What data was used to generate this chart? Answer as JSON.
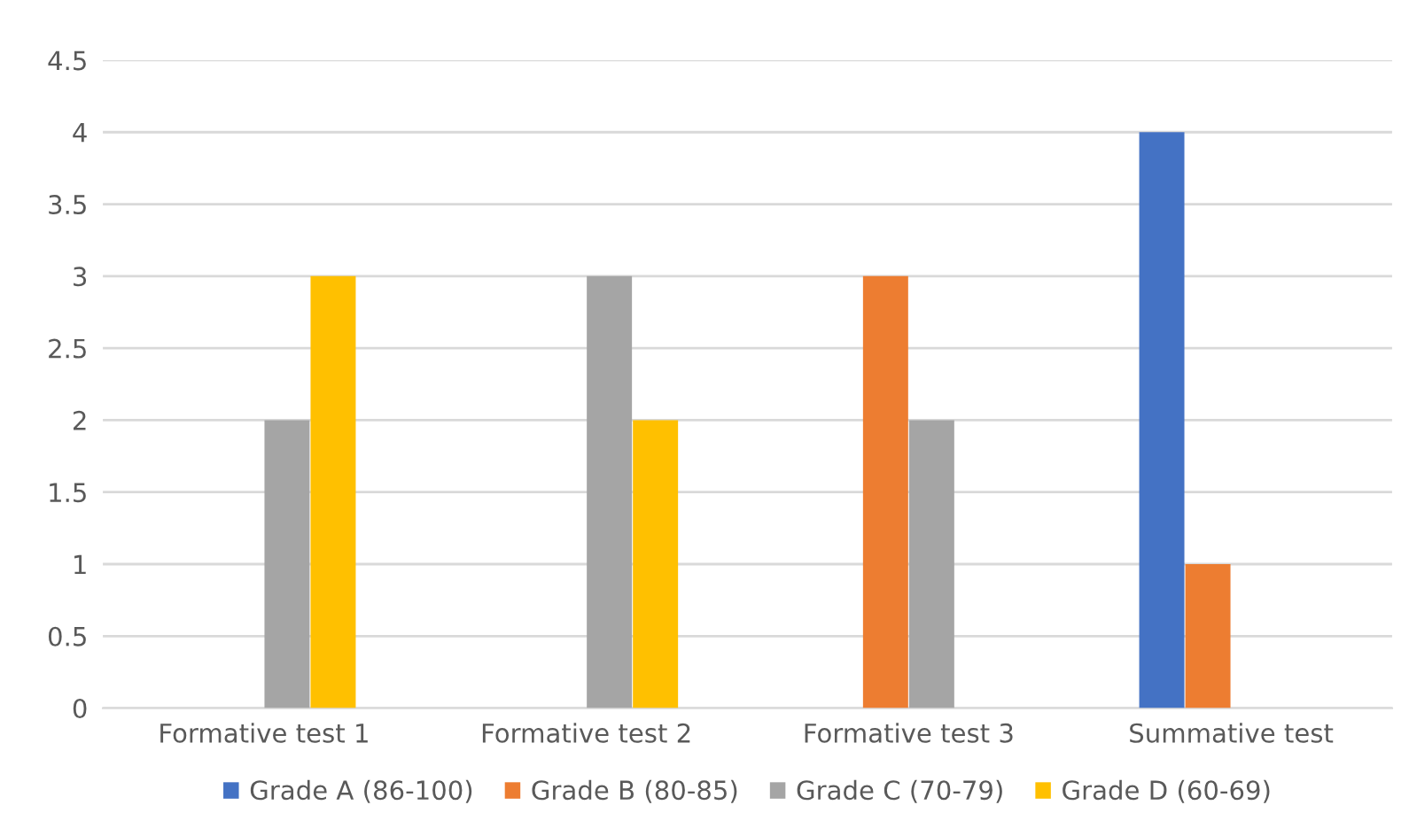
{
  "chart_data": {
    "type": "bar",
    "categories": [
      "Formative test 1",
      "Formative test 2",
      "Formative test 3",
      "Summative test"
    ],
    "series": [
      {
        "name": "Grade A (86-100)",
        "color": "#4472c4",
        "values": [
          0,
          0,
          0,
          4
        ]
      },
      {
        "name": "Grade B (80-85)",
        "color": "#ed7d31",
        "values": [
          0,
          0,
          3,
          1
        ]
      },
      {
        "name": "Grade C (70-79)",
        "color": "#a5a5a5",
        "values": [
          2,
          3,
          2,
          0
        ]
      },
      {
        "name": "Grade D (60-69)",
        "color": "#ffc000",
        "values": [
          3,
          2,
          0,
          0
        ]
      }
    ],
    "ylim": [
      0,
      4.5
    ],
    "yticks": [
      0,
      0.5,
      1,
      1.5,
      2,
      2.5,
      3,
      3.5,
      4,
      4.5
    ],
    "grid": "y",
    "legend": "bottom"
  }
}
